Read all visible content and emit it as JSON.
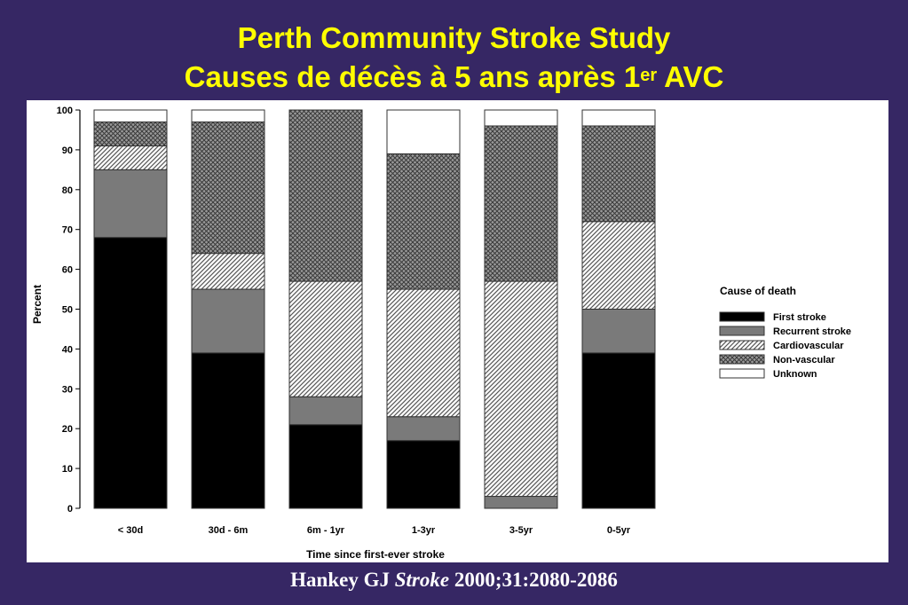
{
  "slide": {
    "title_line1": "Perth Community Stroke Study",
    "title_line2_main": "Causes de décès à 5 ans après 1",
    "title_line2_sup": "er",
    "title_line2_tail": " AVC",
    "citation_author": "Hankey GJ ",
    "citation_journal": "Stroke",
    "citation_ref": " 2000;31:2080-2086"
  },
  "colors": {
    "background": "#362764",
    "title": "#ffff00",
    "citation": "#ffffff",
    "panel": "#ffffff"
  },
  "chart_data": {
    "type": "bar",
    "stacked": true,
    "percent": true,
    "xlabel": "Time since first-ever stroke",
    "ylabel": "Percent",
    "ylim": [
      0,
      100
    ],
    "yticks": [
      0,
      10,
      20,
      30,
      40,
      50,
      60,
      70,
      80,
      90,
      100
    ],
    "grid": false,
    "legend_title": "Cause of death",
    "legend_position": "right",
    "categories": [
      "< 30d",
      "30d - 6m",
      "6m - 1yr",
      "1-3yr",
      "3-5yr",
      "0-5yr"
    ],
    "series": [
      {
        "name": "First stroke",
        "pattern": "solid-black",
        "values": [
          68,
          39,
          21,
          17,
          0,
          39
        ]
      },
      {
        "name": "Recurrent stroke",
        "pattern": "solid-gray",
        "values": [
          17,
          16,
          7,
          6,
          3,
          11
        ]
      },
      {
        "name": "Cardiovascular",
        "pattern": "diagonal-hatch",
        "values": [
          6,
          9,
          29,
          32,
          54,
          22
        ]
      },
      {
        "name": "Non-vascular",
        "pattern": "crosshatch",
        "values": [
          6,
          33,
          43,
          34,
          39,
          24
        ]
      },
      {
        "name": "Unknown",
        "pattern": "white",
        "values": [
          3,
          3,
          0,
          11,
          4,
          4
        ]
      }
    ]
  }
}
